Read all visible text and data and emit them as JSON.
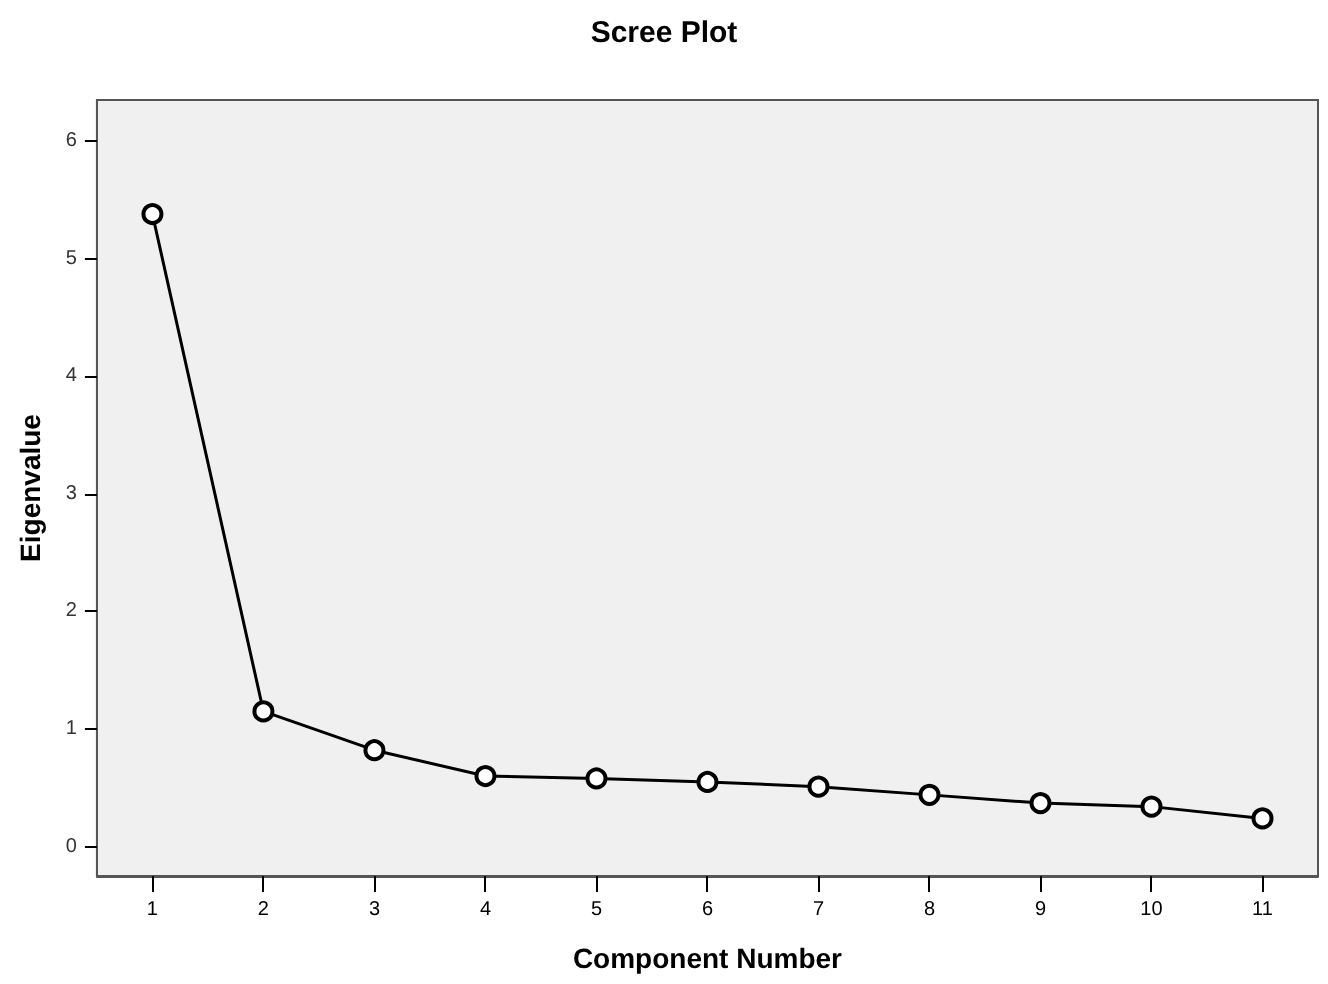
{
  "chart_data": {
    "type": "line",
    "title": "Scree Plot",
    "xlabel": "Component Number",
    "ylabel": "Eigenvalue",
    "categories": [
      "1",
      "2",
      "3",
      "4",
      "5",
      "6",
      "7",
      "8",
      "9",
      "10",
      "11"
    ],
    "series": [
      {
        "color": "#000000",
        "values": [
          5.38,
          1.15,
          0.82,
          0.6,
          0.58,
          0.55,
          0.51,
          0.44,
          0.37,
          0.34,
          0.24
        ]
      }
    ],
    "ylim": [
      -0.25,
      6.35
    ],
    "yticks": [
      0,
      1,
      2,
      3,
      4,
      5,
      6
    ],
    "grid": false,
    "marker": "circle",
    "line_style": "solid"
  }
}
